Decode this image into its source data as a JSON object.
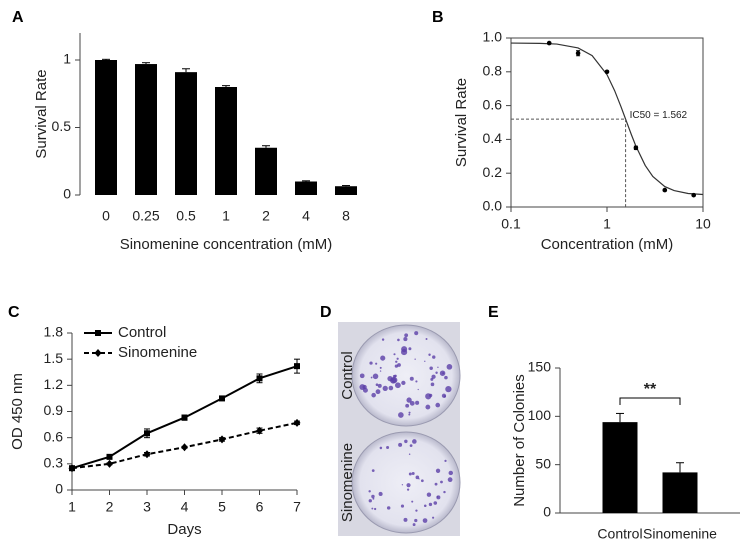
{
  "chart_data": [
    {
      "type": "bar",
      "label": "A",
      "ylabel": "Survival Rate",
      "xlabel": "Sinomenine concentration (mM)",
      "categories": [
        "0",
        "0.25",
        "0.5",
        "1",
        "2",
        "4",
        "8"
      ],
      "values": [
        1.0,
        0.97,
        0.91,
        0.8,
        0.35,
        0.1,
        0.065
      ],
      "errors": [
        0.005,
        0.01,
        0.025,
        0.01,
        0.015,
        0.005,
        0.005
      ],
      "color": "#000000",
      "ylim": [
        0,
        1.2
      ],
      "yticks": [
        0,
        0.5,
        1
      ],
      "frame": "left"
    },
    {
      "type": "scatter",
      "label": "B",
      "ylabel": "Survival Rate",
      "xlabel": "Concentration (mM)",
      "x": [
        0.25,
        0.5,
        1,
        2,
        4,
        8
      ],
      "values": [
        0.97,
        0.91,
        0.8,
        0.35,
        0.1,
        0.07
      ],
      "errors": [
        0.005,
        0.015,
        0.005,
        0.01,
        0.005,
        0.005
      ],
      "fit": {
        "x": [
          0.1,
          0.2,
          0.3,
          0.5,
          0.7,
          1,
          1.2,
          1.4,
          1.562,
          1.8,
          2,
          2.5,
          3,
          4,
          5,
          7,
          10
        ],
        "values": [
          0.97,
          0.968,
          0.964,
          0.941,
          0.896,
          0.783,
          0.689,
          0.593,
          0.52,
          0.426,
          0.36,
          0.246,
          0.181,
          0.121,
          0.097,
          0.08,
          0.074
        ]
      },
      "ic50": {
        "x": 1.562,
        "y": 0.52,
        "label": "IC50 = 1.562"
      },
      "color": "#000000",
      "xscale": "log",
      "xlim": [
        0.1,
        10
      ],
      "xticks": [
        0.1,
        1,
        10
      ],
      "ylim": [
        0,
        1
      ],
      "yticks": [
        {
          "value": 0,
          "label": "0.0"
        },
        0.2,
        0.4,
        0.6,
        0.8,
        {
          "value": 1,
          "label": "1.0"
        }
      ],
      "frame": "box"
    },
    {
      "type": "line",
      "label": "C",
      "ylabel": "OD 450 nm",
      "xlabel": "Days",
      "x": [
        1,
        2,
        3,
        4,
        5,
        6,
        7
      ],
      "series": [
        {
          "name": "Control",
          "color": "#000000",
          "line_style": "solid",
          "marker": "square",
          "values": [
            0.25,
            0.38,
            0.65,
            0.83,
            1.05,
            1.28,
            1.42
          ],
          "errors": [
            0.02,
            0.02,
            0.05,
            0.03,
            0.02,
            0.05,
            0.08
          ]
        },
        {
          "name": "Sinomenine",
          "color": "#000000",
          "line_style": "dashed",
          "marker": "diamond",
          "values": [
            0.25,
            0.3,
            0.41,
            0.49,
            0.58,
            0.68,
            0.77
          ],
          "errors": [
            0.01,
            0.01,
            0.02,
            0.01,
            0.02,
            0.03,
            0.02
          ]
        }
      ],
      "xlim": [
        1,
        7
      ],
      "xticks": [
        1,
        2,
        3,
        4,
        5,
        6,
        7
      ],
      "ylim": [
        0,
        1.8
      ],
      "yticks": [
        0,
        0.3,
        0.6,
        0.9,
        1.2,
        1.5,
        1.8
      ],
      "legend": "top-left",
      "frame": "left-bottom"
    },
    {
      "type": "image",
      "label": "D",
      "row_labels": [
        "Control",
        "Sinomenine"
      ]
    },
    {
      "type": "bar",
      "label": "E",
      "ylabel": "Number of Colonies",
      "categories": [
        "Control",
        "Sinomenine"
      ],
      "values": [
        94,
        42
      ],
      "errors": [
        9,
        10
      ],
      "color": "#000000",
      "ylim": [
        0,
        150
      ],
      "yticks": [
        0,
        50,
        100,
        150
      ],
      "frame": "left-bottom",
      "significance": "**"
    }
  ]
}
